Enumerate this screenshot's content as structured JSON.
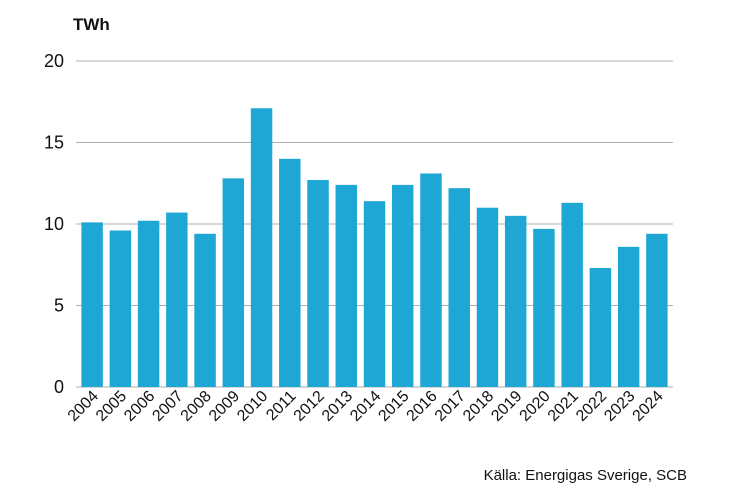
{
  "chart_data": {
    "type": "bar",
    "ylabel": "TWh",
    "categories": [
      "2004",
      "2005",
      "2006",
      "2007",
      "2008",
      "2009",
      "2010",
      "2011",
      "2012",
      "2013",
      "2014",
      "2015",
      "2016",
      "2017",
      "2018",
      "2019",
      "2020",
      "2021",
      "2022",
      "2023",
      "2024"
    ],
    "values": [
      10.1,
      9.6,
      10.2,
      10.7,
      9.4,
      12.8,
      17.1,
      14.0,
      12.7,
      12.4,
      11.4,
      12.4,
      13.1,
      12.2,
      11.0,
      10.5,
      9.7,
      11.3,
      7.3,
      8.6,
      9.4
    ],
    "yticks": [
      0,
      5,
      10,
      15,
      20
    ],
    "ylim": [
      0,
      20
    ],
    "bar_color": "#1ea7d5",
    "grid": true,
    "source": "Källa: Energigas Sverige, SCB"
  }
}
